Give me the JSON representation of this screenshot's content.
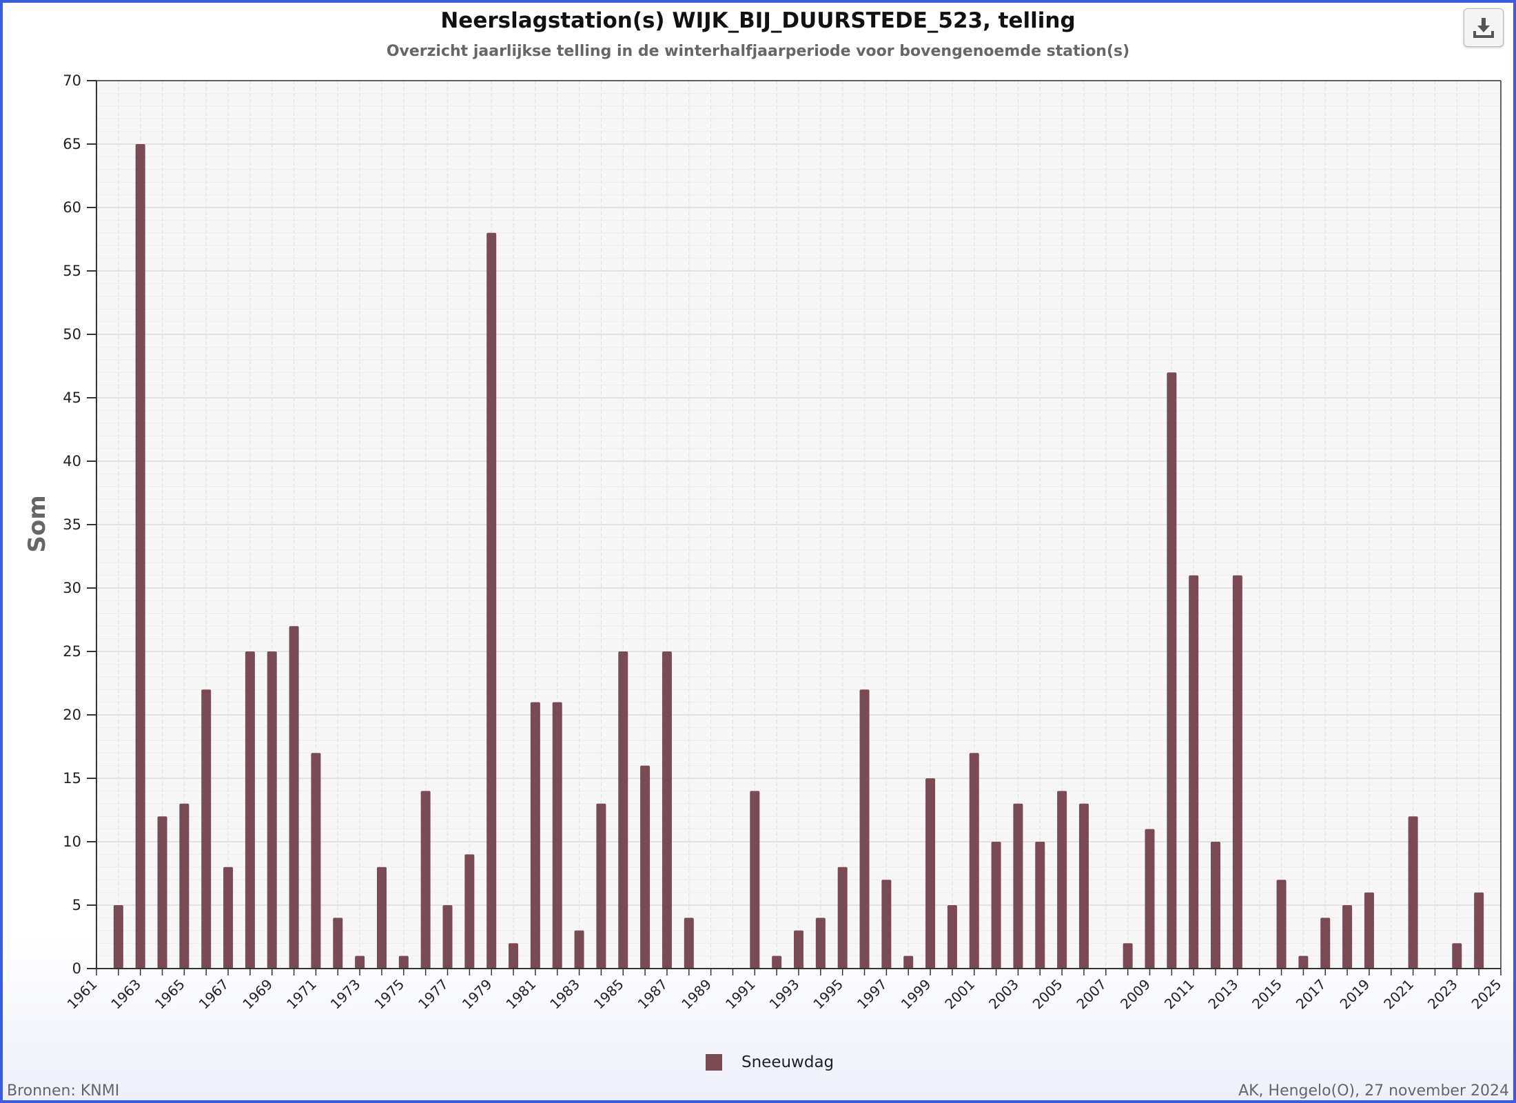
{
  "title": "Neerslagstation(s) WIJK_BIJ_DUURSTEDE_523, telling",
  "subtitle": "Overzicht jaarlijkse telling in de winterhalfjaarperiode voor bovengenoemde station(s)",
  "download_icon": "download-icon",
  "source": "Bronnen: KNMI",
  "credit": "AK, Hengelo(O), 27 november 2024",
  "colors": {
    "bar": "#7a4a55",
    "plot_bg": "#f7f7f7",
    "frame": "#3d5be0"
  },
  "chart_data": {
    "type": "bar",
    "title": "Neerslagstation(s) WIJK_BIJ_DUURSTEDE_523, telling",
    "subtitle": "Overzicht jaarlijkse telling in de winterhalfjaarperiode voor bovengenoemde station(s)",
    "xlabel": "",
    "ylabel": "Som",
    "ylim": [
      0,
      70
    ],
    "yticks": [
      0,
      5,
      10,
      15,
      20,
      25,
      30,
      35,
      40,
      45,
      50,
      55,
      60,
      65,
      70
    ],
    "xlim": [
      1961,
      2025
    ],
    "xticks": [
      1961,
      1963,
      1965,
      1967,
      1969,
      1971,
      1973,
      1975,
      1977,
      1979,
      1981,
      1983,
      1985,
      1987,
      1989,
      1991,
      1993,
      1995,
      1997,
      1999,
      2001,
      2003,
      2005,
      2007,
      2009,
      2011,
      2013,
      2015,
      2017,
      2019,
      2021,
      2023,
      2025
    ],
    "grid": true,
    "legend_position": "bottom",
    "series": [
      {
        "name": "Sneeuwdag",
        "color": "#7a4a55",
        "points": [
          [
            1962,
            5
          ],
          [
            1963,
            65
          ],
          [
            1964,
            12
          ],
          [
            1965,
            13
          ],
          [
            1966,
            22
          ],
          [
            1967,
            8
          ],
          [
            1968,
            25
          ],
          [
            1969,
            25
          ],
          [
            1970,
            27
          ],
          [
            1971,
            17
          ],
          [
            1972,
            4
          ],
          [
            1973,
            1
          ],
          [
            1974,
            8
          ],
          [
            1975,
            1
          ],
          [
            1976,
            14
          ],
          [
            1977,
            5
          ],
          [
            1978,
            9
          ],
          [
            1979,
            58
          ],
          [
            1980,
            2
          ],
          [
            1981,
            21
          ],
          [
            1982,
            21
          ],
          [
            1983,
            3
          ],
          [
            1984,
            13
          ],
          [
            1985,
            25
          ],
          [
            1986,
            16
          ],
          [
            1987,
            25
          ],
          [
            1988,
            4
          ],
          [
            1991,
            14
          ],
          [
            1992,
            1
          ],
          [
            1993,
            3
          ],
          [
            1994,
            4
          ],
          [
            1995,
            8
          ],
          [
            1996,
            22
          ],
          [
            1997,
            7
          ],
          [
            1998,
            1
          ],
          [
            1999,
            15
          ],
          [
            2000,
            5
          ],
          [
            2001,
            17
          ],
          [
            2002,
            10
          ],
          [
            2003,
            13
          ],
          [
            2004,
            10
          ],
          [
            2005,
            14
          ],
          [
            2006,
            13
          ],
          [
            2008,
            2
          ],
          [
            2009,
            11
          ],
          [
            2010,
            47
          ],
          [
            2011,
            31
          ],
          [
            2012,
            10
          ],
          [
            2013,
            31
          ],
          [
            2015,
            7
          ],
          [
            2016,
            1
          ],
          [
            2017,
            4
          ],
          [
            2018,
            5
          ],
          [
            2019,
            6
          ],
          [
            2021,
            12
          ],
          [
            2023,
            2
          ],
          [
            2024,
            6
          ]
        ]
      }
    ]
  }
}
